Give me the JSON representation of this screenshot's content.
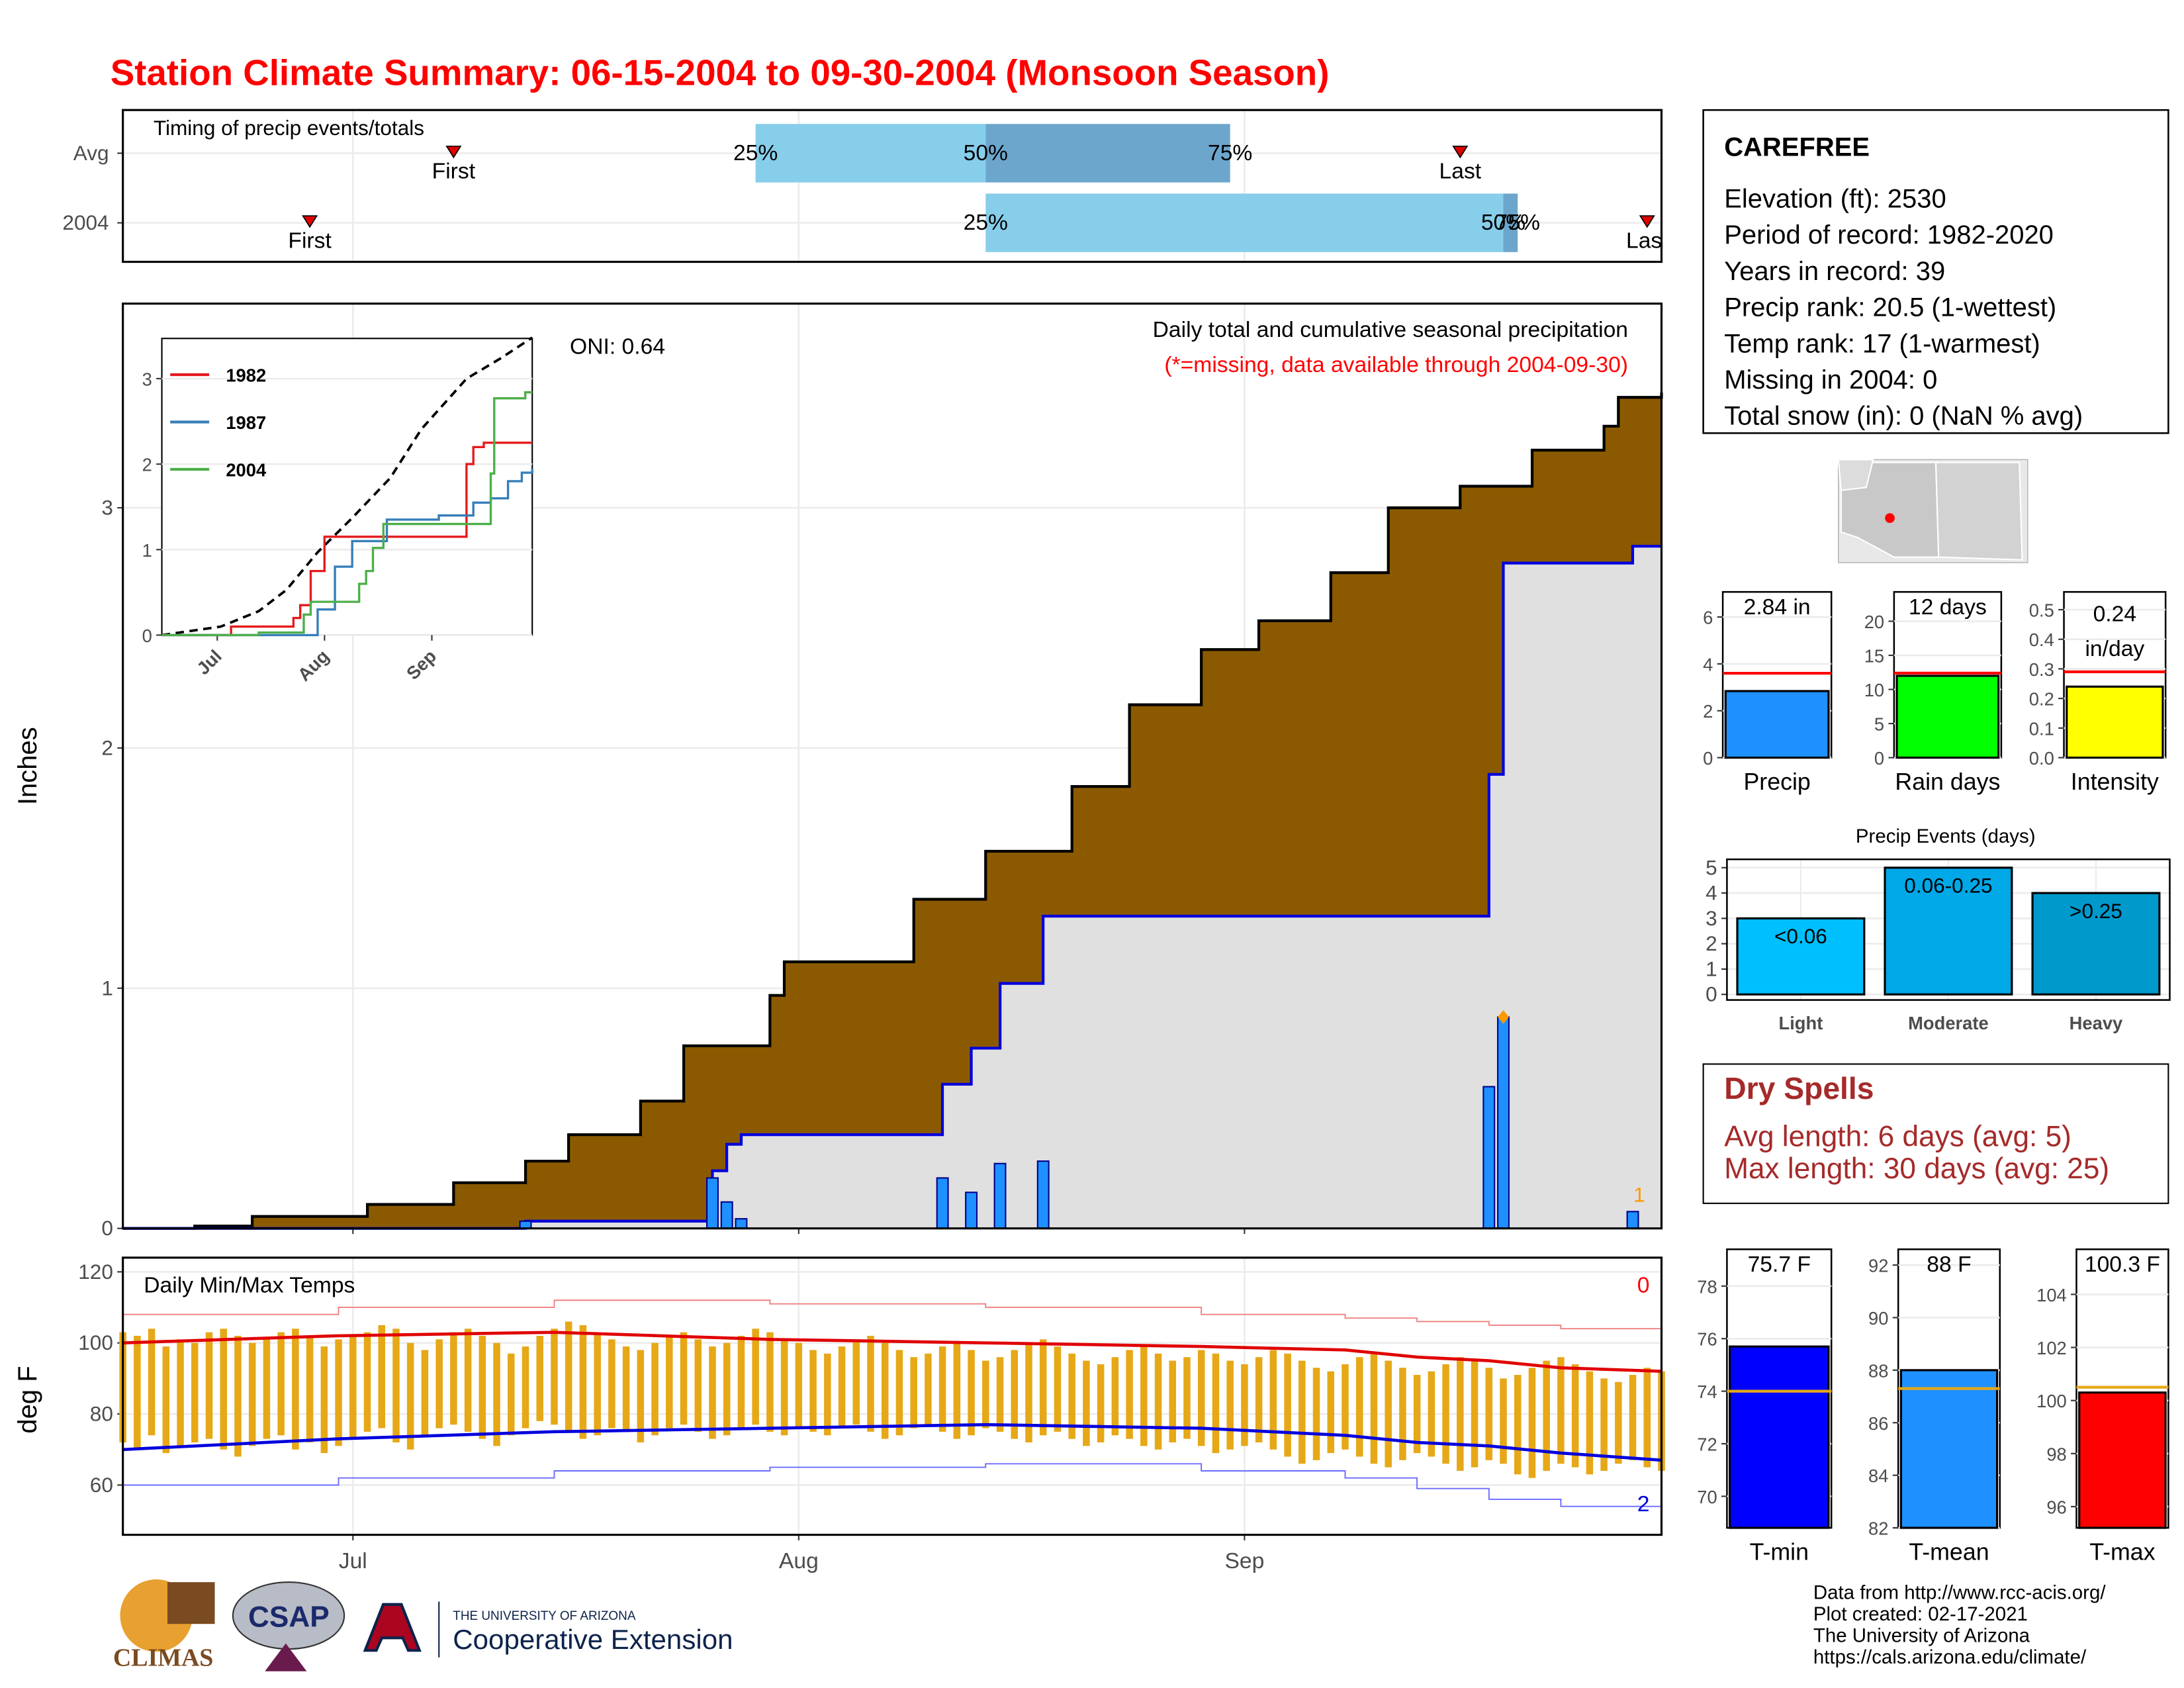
{
  "title": "Station Climate Summary: 06-15-2004 to 09-30-2004 (Monsoon Season)",
  "xaxis": {
    "xlim": [
      0,
      107
    ],
    "xticks": [
      {
        "value": 16,
        "label": "Jul"
      },
      {
        "value": 47,
        "label": "Aug"
      },
      {
        "value": 78,
        "label": "Sep"
      }
    ]
  },
  "station": {
    "name": "CAREFREE",
    "lines": [
      "Elevation (ft): 2530",
      "Period of record: 1982-2020",
      "Years in record: 39",
      "Precip rank: 20.5 (1-wettest)",
      "Temp rank: 17 (1-warmest)",
      "Missing in 2004: 0",
      "Total snow (in): 0 (NaN % avg)"
    ]
  },
  "dry_spells": {
    "title": "Dry Spells",
    "lines": [
      "Avg length: 6 days (avg: 5)",
      "Max length: 30 days (avg: 25)"
    ]
  },
  "footer": [
    "Data from http://www.rcc-acis.org/",
    "Plot created: 02-17-2021",
    "The University of Arizona",
    "https://cals.arizona.edu/climate/"
  ],
  "logos": {
    "climas": "CLIMAS",
    "csap": "CSAP",
    "ua": "THE UNIVERSITY OF ARIZONA",
    "extension": "Cooperative Extension"
  },
  "chart_data": [
    {
      "type": "timeline",
      "title": "Timing of precip events/totals",
      "bar_colors": [
        "#87ceeb",
        "#6ca6cd"
      ],
      "marker_color": "#e00000",
      "series": [
        {
          "name": "Avg",
          "markers": [
            {
              "label": "First",
              "value": 23
            },
            {
              "label": "25%",
              "value": 44
            },
            {
              "label": "50%",
              "value": 60
            },
            {
              "label": "75%",
              "value": 77
            },
            {
              "label": "Last",
              "value": 93
            }
          ]
        },
        {
          "name": "2004",
          "markers": [
            {
              "label": "First",
              "value": 13
            },
            {
              "label": "25%",
              "value": 60
            },
            {
              "label": "50%",
              "value": 96
            },
            {
              "label": "75%",
              "value": 97
            },
            {
              "label": "Last",
              "value": 106
            }
          ]
        }
      ]
    },
    {
      "type": "step",
      "title": "Daily total and cumulative seasonal precipitation",
      "note": "(*=missing, data available through 2004-09-30)",
      "annotation": "ONI: 0.64",
      "corner_label": "1",
      "ylabel": "Inches",
      "ylim": [
        0,
        3.85
      ],
      "yticks": [
        0,
        1,
        2,
        3
      ],
      "grid": true,
      "average": {
        "color": "#8b5a00",
        "x": [
          0,
          5,
          9,
          17,
          23,
          28,
          31,
          36,
          39,
          45,
          46,
          55,
          60,
          66,
          70,
          75,
          79,
          84,
          88,
          93,
          98,
          103,
          104,
          107
        ],
        "values": [
          0,
          0.01,
          0.05,
          0.1,
          0.19,
          0.28,
          0.39,
          0.53,
          0.76,
          0.97,
          1.11,
          1.37,
          1.57,
          1.84,
          2.18,
          2.41,
          2.53,
          2.73,
          3.0,
          3.09,
          3.24,
          3.34,
          3.46,
          3.48
        ]
      },
      "daily": {
        "color": "#1e90ff",
        "x": [
          28,
          41,
          42,
          43,
          57,
          59,
          61,
          64,
          95,
          96,
          105
        ],
        "values": [
          0.03,
          0.21,
          0.11,
          0.04,
          0.21,
          0.15,
          0.27,
          0.28,
          0.59,
          0.88,
          0.07
        ]
      }
    },
    {
      "type": "line",
      "ylim": [
        0,
        3.47
      ],
      "yticks": [
        0,
        1,
        2,
        3
      ],
      "reference": {
        "color": "#000000",
        "x": [
          0,
          17,
          28,
          36,
          45,
          55,
          66,
          75,
          88,
          98,
          107
        ],
        "values": [
          0,
          0.1,
          0.28,
          0.53,
          0.97,
          1.37,
          1.84,
          2.41,
          3.0,
          3.24,
          3.48
        ]
      },
      "series": [
        {
          "name": "1982",
          "color": "#e41a1c",
          "x": [
            0,
            20,
            38,
            40,
            43,
            47,
            85,
            88,
            90,
            93,
            107
          ],
          "values": [
            0,
            0.1,
            0.2,
            0.35,
            0.75,
            1.15,
            1.15,
            2.0,
            2.2,
            2.25,
            2.25
          ]
        },
        {
          "name": "1987",
          "color": "#377eb8",
          "x": [
            0,
            40,
            45,
            50,
            55,
            65,
            80,
            90,
            95,
            100,
            104,
            107
          ],
          "values": [
            0,
            0,
            0.3,
            0.8,
            1.1,
            1.35,
            1.4,
            1.55,
            1.6,
            1.8,
            1.9,
            1.95
          ]
        },
        {
          "name": "2004",
          "color": "#4daf4a",
          "x": [
            0,
            28,
            41,
            43,
            57,
            59,
            61,
            64,
            95,
            96,
            105,
            107
          ],
          "values": [
            0,
            0.03,
            0.24,
            0.39,
            0.6,
            0.75,
            1.02,
            1.3,
            1.89,
            2.77,
            2.84,
            2.84
          ]
        }
      ]
    },
    {
      "type": "range",
      "title": "Daily Min/Max Temps",
      "ylabel": "deg F",
      "high_count": "0",
      "low_count": "2",
      "ylim": [
        46,
        124
      ],
      "yticks": [
        60,
        80,
        100,
        120
      ],
      "grid": true,
      "bar_color": "#e6a817",
      "x": [
        0,
        1,
        2,
        3,
        4,
        5,
        6,
        7,
        8,
        9,
        10,
        11,
        12,
        13,
        14,
        15,
        16,
        17,
        18,
        19,
        20,
        21,
        22,
        23,
        24,
        25,
        26,
        27,
        28,
        29,
        30,
        31,
        32,
        33,
        34,
        35,
        36,
        37,
        38,
        39,
        40,
        41,
        42,
        43,
        44,
        45,
        46,
        47,
        48,
        49,
        50,
        51,
        52,
        53,
        54,
        55,
        56,
        57,
        58,
        59,
        60,
        61,
        62,
        63,
        64,
        65,
        66,
        67,
        68,
        69,
        70,
        71,
        72,
        73,
        74,
        75,
        76,
        77,
        78,
        79,
        80,
        81,
        82,
        83,
        84,
        85,
        86,
        87,
        88,
        89,
        90,
        91,
        92,
        93,
        94,
        95,
        96,
        97,
        98,
        99,
        100,
        101,
        102,
        103,
        104,
        105,
        106,
        107
      ],
      "max": [
        103,
        102,
        104,
        99,
        101,
        100,
        103,
        104,
        102,
        100,
        101,
        103,
        104,
        102,
        99,
        101,
        102,
        103,
        105,
        104,
        100,
        98,
        101,
        103,
        104,
        102,
        100,
        97,
        99,
        102,
        104,
        106,
        105,
        103,
        101,
        99,
        98,
        100,
        102,
        103,
        101,
        99,
        100,
        102,
        104,
        103,
        101,
        100,
        98,
        97,
        99,
        101,
        102,
        100,
        98,
        96,
        97,
        99,
        100,
        98,
        95,
        96,
        98,
        100,
        101,
        99,
        97,
        95,
        94,
        96,
        98,
        99,
        97,
        95,
        96,
        98,
        97,
        95,
        94,
        96,
        98,
        97,
        95,
        93,
        92,
        94,
        96,
        97,
        95,
        93,
        91,
        92,
        94,
        96,
        95,
        93,
        90,
        91,
        93,
        95,
        96,
        94,
        92,
        90,
        89,
        91,
        93,
        92
      ],
      "min": [
        72,
        70,
        74,
        69,
        71,
        72,
        73,
        70,
        68,
        71,
        73,
        74,
        70,
        72,
        69,
        71,
        73,
        75,
        76,
        72,
        70,
        74,
        76,
        77,
        75,
        73,
        71,
        74,
        76,
        78,
        77,
        75,
        73,
        74,
        76,
        75,
        72,
        74,
        76,
        77,
        75,
        73,
        74,
        76,
        77,
        75,
        74,
        76,
        75,
        74,
        76,
        77,
        75,
        73,
        74,
        76,
        77,
        75,
        73,
        74,
        76,
        75,
        73,
        72,
        74,
        75,
        73,
        71,
        72,
        74,
        73,
        71,
        70,
        72,
        73,
        71,
        69,
        70,
        71,
        72,
        70,
        68,
        66,
        67,
        69,
        70,
        68,
        66,
        65,
        67,
        69,
        68,
        66,
        64,
        65,
        67,
        66,
        63,
        62,
        64,
        66,
        65,
        63,
        64,
        66,
        67,
        65,
        64
      ],
      "avg_max": {
        "color": "#e00000",
        "x": [
          0,
          15,
          30,
          45,
          60,
          75,
          85,
          90,
          95,
          100,
          107
        ],
        "values": [
          100,
          102,
          103,
          101,
          100,
          99,
          98,
          96,
          95,
          93,
          92
        ]
      },
      "avg_min": {
        "color": "#0000dd",
        "x": [
          0,
          15,
          30,
          45,
          60,
          75,
          85,
          90,
          95,
          100,
          107
        ],
        "values": [
          70,
          73,
          75,
          76,
          77,
          76,
          74,
          72,
          71,
          69,
          67
        ]
      },
      "record_max": {
        "color": "#f08080",
        "x": [
          0,
          15,
          30,
          45,
          60,
          75,
          85,
          90,
          95,
          100,
          107
        ],
        "values": [
          108,
          110,
          112,
          111,
          110,
          108,
          107,
          106,
          105,
          104,
          103
        ]
      },
      "record_min": {
        "color": "#6b6bff",
        "x": [
          0,
          15,
          30,
          45,
          60,
          75,
          85,
          90,
          95,
          100,
          107
        ],
        "values": [
          60,
          62,
          64,
          65,
          66,
          64,
          62,
          59,
          56,
          54,
          55
        ]
      }
    },
    {
      "type": "gauge",
      "title": "Precip",
      "value": 2.84,
      "value_label": "2.84 in",
      "avg": 3.6,
      "color": "#1e90ff",
      "line_color": "#ff0000",
      "ylim": [
        0,
        7.07
      ],
      "yticks": [
        0,
        2,
        4,
        6
      ]
    },
    {
      "type": "gauge",
      "title": "Rain days",
      "value": 12,
      "value_label": "12 days",
      "avg": 12.4,
      "color": "#00ff00",
      "line_color": "#ff0000",
      "ylim": [
        0,
        24.3
      ],
      "yticks": [
        0,
        5,
        10,
        15,
        20
      ]
    },
    {
      "type": "gauge",
      "title": "Intensity",
      "value": 0.24,
      "value_label": [
        "0.24",
        "in/day"
      ],
      "avg": 0.29,
      "color": "#ffff00",
      "line_color": "#ff0000",
      "ylim": [
        0,
        0.56
      ],
      "yticks": [
        {
          "value": 0,
          "label": "0.0"
        },
        0.1,
        0.2,
        0.3,
        0.4,
        0.5
      ]
    },
    {
      "type": "bar",
      "title": "Precip Events (days)",
      "categories": [
        "Light",
        "Moderate",
        "Heavy"
      ],
      "values": [
        3,
        5,
        4
      ],
      "value_labels": [
        "<0.06",
        "0.06-0.25",
        ">0.25"
      ],
      "colors": [
        "#00bfff",
        "#00a8e8",
        "#0099cc"
      ],
      "ylim": [
        0,
        5.33
      ],
      "yticks": [
        0,
        1,
        2,
        3,
        4,
        5
      ],
      "grid": true
    },
    {
      "type": "gauge",
      "title": "T-min",
      "value": 75.7,
      "value_label": "75.7 F",
      "avg": 74.0,
      "color": "#0000ff",
      "line_color": "#e6a817",
      "ylim": [
        68.8,
        79.4
      ],
      "yticks": [
        70,
        72,
        74,
        76,
        78
      ]
    },
    {
      "type": "gauge",
      "title": "T-mean",
      "value": 88,
      "value_label": "88 F",
      "avg": 87.3,
      "color": "#1e90ff",
      "line_color": "#e6a817",
      "ylim": [
        82,
        92.6
      ],
      "yticks": [
        82,
        84,
        86,
        88,
        90,
        92
      ]
    },
    {
      "type": "gauge",
      "title": "T-max",
      "value": 100.3,
      "value_label": "100.3 F",
      "avg": 100.5,
      "color": "#ff0000",
      "line_color": "#e6a817",
      "ylim": [
        95.2,
        105.7
      ],
      "yticks": [
        96,
        98,
        100,
        102,
        104
      ]
    }
  ]
}
